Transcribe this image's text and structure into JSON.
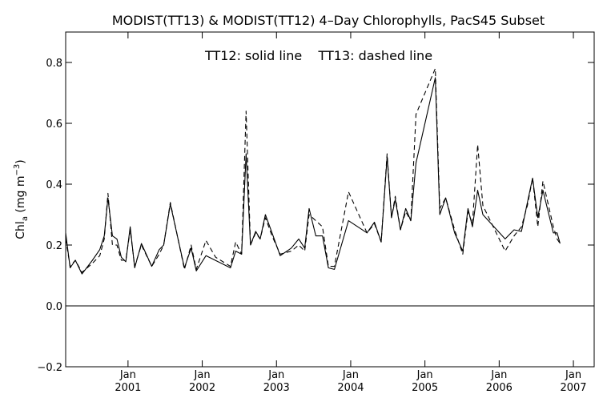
{
  "chart_data": {
    "type": "line",
    "title": "MODIST(TT13) & MODIST(TT12) 4–Day Chlorophylls, PacS45 Subset",
    "annotation": "TT12: solid line    TT13: dashed line",
    "ylabel": "Chl",
    "ylabel_sub": "a",
    "ylabel_unit": " (mg m",
    "ylabel_sup": "−3",
    "ylabel_close": ")",
    "xlim": [
      2000.16,
      2007.28
    ],
    "ylim": [
      -0.2,
      0.9
    ],
    "yticks": [
      -0.2,
      0.0,
      0.2,
      0.4,
      0.6,
      0.8
    ],
    "ytick_labels": [
      "−0.2",
      "0.0",
      "0.2",
      "0.4",
      "0.6",
      "0.8"
    ],
    "xticks_month": [
      {
        "x": 2001.0,
        "label": "Jan"
      },
      {
        "x": 2002.0,
        "label": "Jan"
      },
      {
        "x": 2003.0,
        "label": "Jan"
      },
      {
        "x": 2004.0,
        "label": "Jan"
      },
      {
        "x": 2005.0,
        "label": "Jan"
      },
      {
        "x": 2006.0,
        "label": "Jan"
      },
      {
        "x": 2007.0,
        "label": "Jan"
      }
    ],
    "xticks_year": [
      {
        "x": 2001.0,
        "label": "2001"
      },
      {
        "x": 2002.0,
        "label": "2002"
      },
      {
        "x": 2003.0,
        "label": "2003"
      },
      {
        "x": 2004.0,
        "label": "2004"
      },
      {
        "x": 2005.0,
        "label": "2005"
      },
      {
        "x": 2006.0,
        "label": "2006"
      },
      {
        "x": 2007.0,
        "label": "2007"
      }
    ],
    "zero_line": 0.0,
    "series": [
      {
        "name": "TT12",
        "style": "solid",
        "points": [
          [
            2000.16,
            0.24
          ],
          [
            2000.22,
            0.125
          ],
          [
            2000.29,
            0.15
          ],
          [
            2000.38,
            0.105
          ],
          [
            2000.52,
            0.15
          ],
          [
            2000.62,
            0.185
          ],
          [
            2000.68,
            0.23
          ],
          [
            2000.73,
            0.355
          ],
          [
            2000.79,
            0.23
          ],
          [
            2000.85,
            0.22
          ],
          [
            2000.91,
            0.16
          ],
          [
            2000.97,
            0.145
          ],
          [
            2001.03,
            0.26
          ],
          [
            2001.09,
            0.125
          ],
          [
            2001.18,
            0.205
          ],
          [
            2001.32,
            0.13
          ],
          [
            2001.42,
            0.185
          ],
          [
            2001.48,
            0.2
          ],
          [
            2001.57,
            0.335
          ],
          [
            2001.76,
            0.125
          ],
          [
            2001.85,
            0.19
          ],
          [
            2001.92,
            0.115
          ],
          [
            2002.05,
            0.165
          ],
          [
            2002.38,
            0.125
          ],
          [
            2002.45,
            0.18
          ],
          [
            2002.53,
            0.17
          ],
          [
            2002.59,
            0.5
          ],
          [
            2002.65,
            0.2
          ],
          [
            2002.72,
            0.245
          ],
          [
            2002.78,
            0.22
          ],
          [
            2002.85,
            0.3
          ],
          [
            2002.94,
            0.24
          ],
          [
            2003.05,
            0.165
          ],
          [
            2003.2,
            0.19
          ],
          [
            2003.3,
            0.22
          ],
          [
            2003.38,
            0.19
          ],
          [
            2003.44,
            0.32
          ],
          [
            2003.53,
            0.23
          ],
          [
            2003.62,
            0.23
          ],
          [
            2003.7,
            0.125
          ],
          [
            2003.78,
            0.12
          ],
          [
            2003.97,
            0.28
          ],
          [
            2004.22,
            0.24
          ],
          [
            2004.32,
            0.275
          ],
          [
            2004.41,
            0.21
          ],
          [
            2004.49,
            0.49
          ],
          [
            2004.55,
            0.29
          ],
          [
            2004.6,
            0.35
          ],
          [
            2004.67,
            0.25
          ],
          [
            2004.74,
            0.32
          ],
          [
            2004.81,
            0.28
          ],
          [
            2004.88,
            0.47
          ],
          [
            2005.14,
            0.75
          ],
          [
            2005.2,
            0.3
          ],
          [
            2005.28,
            0.355
          ],
          [
            2005.4,
            0.24
          ],
          [
            2005.51,
            0.18
          ],
          [
            2005.58,
            0.32
          ],
          [
            2005.64,
            0.26
          ],
          [
            2005.71,
            0.38
          ],
          [
            2005.78,
            0.3
          ],
          [
            2006.08,
            0.22
          ],
          [
            2006.2,
            0.25
          ],
          [
            2006.3,
            0.245
          ],
          [
            2006.38,
            0.34
          ],
          [
            2006.45,
            0.42
          ],
          [
            2006.52,
            0.29
          ],
          [
            2006.59,
            0.38
          ],
          [
            2006.73,
            0.24
          ],
          [
            2006.78,
            0.24
          ],
          [
            2006.82,
            0.205
          ]
        ]
      },
      {
        "name": "TT13",
        "style": "dashed",
        "points": [
          [
            2000.16,
            0.22
          ],
          [
            2000.22,
            0.13
          ],
          [
            2000.29,
            0.15
          ],
          [
            2000.38,
            0.11
          ],
          [
            2000.52,
            0.14
          ],
          [
            2000.62,
            0.165
          ],
          [
            2000.68,
            0.22
          ],
          [
            2000.73,
            0.37
          ],
          [
            2000.79,
            0.2
          ],
          [
            2000.85,
            0.2
          ],
          [
            2000.91,
            0.15
          ],
          [
            2000.97,
            0.15
          ],
          [
            2001.03,
            0.25
          ],
          [
            2001.09,
            0.13
          ],
          [
            2001.18,
            0.2
          ],
          [
            2001.32,
            0.13
          ],
          [
            2001.42,
            0.17
          ],
          [
            2001.48,
            0.2
          ],
          [
            2001.57,
            0.34
          ],
          [
            2001.76,
            0.12
          ],
          [
            2001.85,
            0.2
          ],
          [
            2001.92,
            0.12
          ],
          [
            2002.05,
            0.215
          ],
          [
            2002.18,
            0.16
          ],
          [
            2002.38,
            0.13
          ],
          [
            2002.45,
            0.21
          ],
          [
            2002.53,
            0.17
          ],
          [
            2002.59,
            0.64
          ],
          [
            2002.65,
            0.2
          ],
          [
            2002.72,
            0.24
          ],
          [
            2002.78,
            0.22
          ],
          [
            2002.85,
            0.29
          ],
          [
            2002.94,
            0.23
          ],
          [
            2003.05,
            0.17
          ],
          [
            2003.2,
            0.18
          ],
          [
            2003.3,
            0.2
          ],
          [
            2003.38,
            0.18
          ],
          [
            2003.44,
            0.3
          ],
          [
            2003.53,
            0.28
          ],
          [
            2003.62,
            0.26
          ],
          [
            2003.7,
            0.13
          ],
          [
            2003.78,
            0.13
          ],
          [
            2003.97,
            0.375
          ],
          [
            2004.22,
            0.24
          ],
          [
            2004.32,
            0.27
          ],
          [
            2004.41,
            0.21
          ],
          [
            2004.49,
            0.5
          ],
          [
            2004.55,
            0.29
          ],
          [
            2004.6,
            0.36
          ],
          [
            2004.67,
            0.25
          ],
          [
            2004.74,
            0.31
          ],
          [
            2004.81,
            0.28
          ],
          [
            2004.88,
            0.63
          ],
          [
            2005.14,
            0.78
          ],
          [
            2005.2,
            0.32
          ],
          [
            2005.28,
            0.355
          ],
          [
            2005.4,
            0.25
          ],
          [
            2005.51,
            0.17
          ],
          [
            2005.58,
            0.31
          ],
          [
            2005.64,
            0.27
          ],
          [
            2005.71,
            0.53
          ],
          [
            2005.78,
            0.33
          ],
          [
            2006.08,
            0.18
          ],
          [
            2006.2,
            0.23
          ],
          [
            2006.3,
            0.26
          ],
          [
            2006.38,
            0.33
          ],
          [
            2006.45,
            0.42
          ],
          [
            2006.52,
            0.26
          ],
          [
            2006.59,
            0.41
          ],
          [
            2006.73,
            0.26
          ],
          [
            2006.78,
            0.22
          ],
          [
            2006.82,
            0.205
          ]
        ]
      }
    ]
  }
}
